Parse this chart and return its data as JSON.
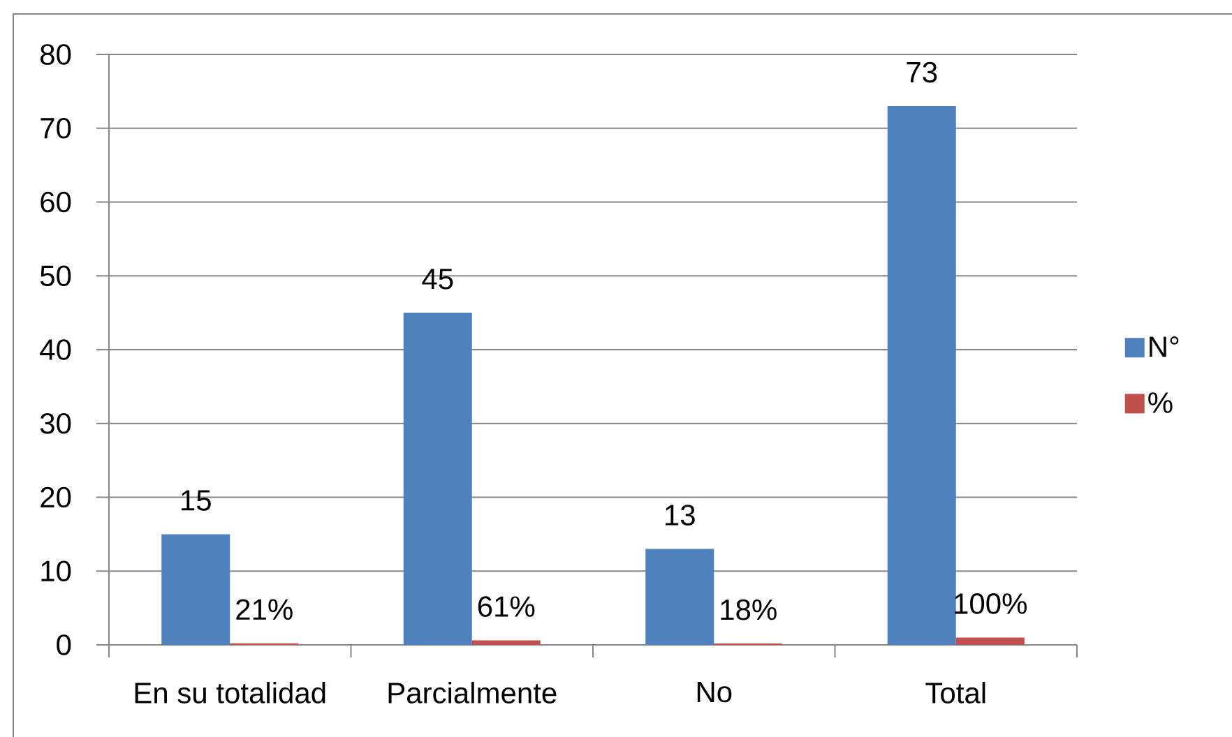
{
  "chart_data": {
    "type": "bar",
    "categories": [
      "En su totalidad",
      "Parcialmente",
      "No",
      "Total"
    ],
    "series": [
      {
        "name": "N°",
        "color": "#4f81bd",
        "values": [
          15,
          45,
          13,
          73
        ],
        "value_labels": [
          "15",
          "45",
          "13",
          "73"
        ]
      },
      {
        "name": "%",
        "color": "#c0504d",
        "values": [
          0.21,
          0.61,
          0.18,
          1
        ],
        "value_labels": [
          "21%",
          "61%",
          "18%",
          "100%"
        ]
      }
    ],
    "ylim": [
      0,
      80
    ],
    "yticks": [
      0,
      10,
      20,
      30,
      40,
      50,
      60,
      70,
      80
    ],
    "grid": "y",
    "legend": "right"
  }
}
